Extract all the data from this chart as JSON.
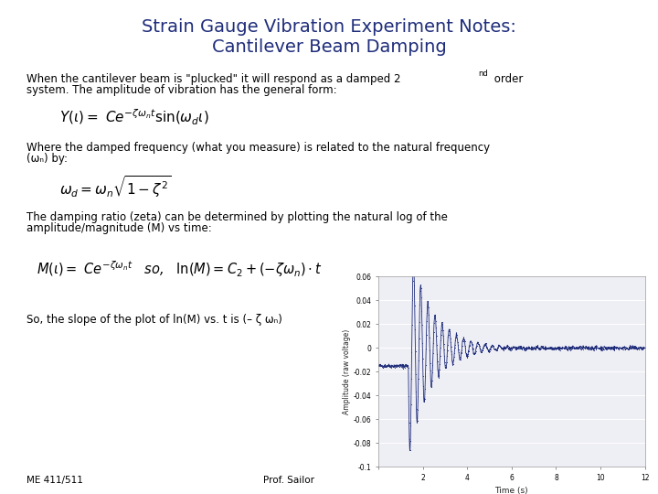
{
  "title_line1": "Strain Gauge Vibration Experiment Notes:",
  "title_line2": "Cantilever Beam Damping",
  "title_color": "#1F2D7B",
  "background_color": "#FFFFFF",
  "text_color": "#000000",
  "footer_left": "ME 411/511",
  "footer_right": "Prof. Sailor",
  "plot_xlim": [
    0,
    12
  ],
  "plot_ylim": [
    -0.1,
    0.06
  ],
  "plot_yticks": [
    -0.1,
    -0.08,
    -0.06,
    -0.04,
    -0.02,
    0,
    0.02,
    0.04,
    0.06
  ],
  "plot_xticks": [
    0,
    2,
    4,
    6,
    8,
    10,
    12
  ],
  "plot_xlabel": "Time (s)",
  "plot_ylabel": "Amplitude (raw voltage)",
  "plot_color": "#1F2D7B",
  "title_fontsize": 14,
  "body_fontsize": 8.5,
  "formula_fontsize": 11,
  "footer_fontsize": 7.5
}
